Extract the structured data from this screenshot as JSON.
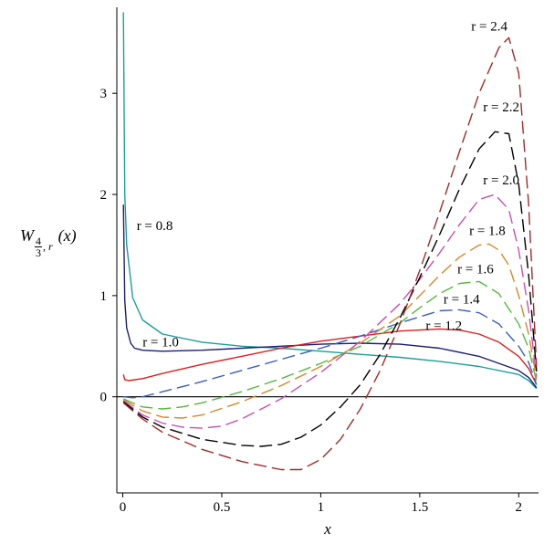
{
  "chart_data": {
    "type": "line",
    "title": "",
    "xlabel": "x",
    "ylabel_parts": {
      "main": "W",
      "frac_num": "4",
      "frac_den": "3",
      "sub_sep": ", ",
      "sub_var": "r",
      "arg": "(x)"
    },
    "xlim": [
      -0.03,
      2.1
    ],
    "ylim": [
      -0.95,
      3.85
    ],
    "x_ticks": [
      0,
      0.5,
      1,
      1.5,
      2
    ],
    "x_tick_labels": [
      "0",
      "0.5",
      "1",
      "1.5",
      "2"
    ],
    "y_ticks": [
      0,
      1,
      2,
      3
    ],
    "y_tick_labels": [
      "0",
      "1",
      "2",
      "3"
    ],
    "grid": false,
    "legend": "none",
    "series": [
      {
        "name": "r = 0.8",
        "color": "#19a09a",
        "dash": "solid",
        "x": [
          0.003,
          0.01,
          0.02,
          0.05,
          0.1,
          0.2,
          0.4,
          0.6,
          0.8,
          1.0,
          1.2,
          1.4,
          1.6,
          1.8,
          2.0,
          2.05,
          2.09
        ],
        "y": [
          3.8,
          2.0,
          1.5,
          0.98,
          0.76,
          0.62,
          0.54,
          0.5,
          0.48,
          0.45,
          0.42,
          0.39,
          0.35,
          0.3,
          0.22,
          0.16,
          0.08
        ]
      },
      {
        "name": "r = 1.0",
        "color": "#1c1c7a",
        "dash": "solid",
        "x": [
          0.003,
          0.01,
          0.02,
          0.04,
          0.06,
          0.1,
          0.2,
          0.4,
          0.6,
          0.8,
          1.0,
          1.2,
          1.4,
          1.6,
          1.8,
          2.0,
          2.05,
          2.09
        ],
        "y": [
          1.9,
          0.95,
          0.68,
          0.53,
          0.48,
          0.46,
          0.45,
          0.46,
          0.48,
          0.5,
          0.52,
          0.53,
          0.52,
          0.48,
          0.4,
          0.26,
          0.19,
          0.09
        ]
      },
      {
        "name": "r = 1.2",
        "color": "#e21c1c",
        "dash": "solid",
        "x": [
          0.003,
          0.01,
          0.03,
          0.1,
          0.2,
          0.4,
          0.6,
          0.8,
          1.0,
          1.2,
          1.4,
          1.6,
          1.7,
          1.8,
          1.9,
          2.0,
          2.05,
          2.09
        ],
        "y": [
          0.22,
          0.17,
          0.16,
          0.18,
          0.23,
          0.32,
          0.4,
          0.48,
          0.55,
          0.6,
          0.65,
          0.67,
          0.66,
          0.62,
          0.54,
          0.4,
          0.28,
          0.12
        ]
      },
      {
        "name": "r = 1.4",
        "color": "#3a5fbf",
        "dash": "dashed",
        "x": [
          0.003,
          0.05,
          0.1,
          0.2,
          0.4,
          0.6,
          0.8,
          1.0,
          1.2,
          1.4,
          1.5,
          1.6,
          1.7,
          1.8,
          1.9,
          2.0,
          2.05,
          2.09
        ],
        "y": [
          0.0,
          -0.01,
          0.0,
          0.05,
          0.15,
          0.26,
          0.37,
          0.48,
          0.6,
          0.73,
          0.79,
          0.85,
          0.86,
          0.83,
          0.72,
          0.5,
          0.34,
          0.12
        ]
      },
      {
        "name": "r = 1.6",
        "color": "#55b83a",
        "dash": "dashed",
        "x": [
          0.003,
          0.05,
          0.1,
          0.2,
          0.3,
          0.4,
          0.6,
          0.8,
          1.0,
          1.2,
          1.4,
          1.5,
          1.6,
          1.7,
          1.8,
          1.9,
          2.0,
          2.05,
          2.09
        ],
        "y": [
          -0.02,
          -0.06,
          -0.1,
          -0.12,
          -0.1,
          -0.06,
          0.05,
          0.18,
          0.33,
          0.5,
          0.73,
          0.88,
          1.02,
          1.12,
          1.14,
          1.02,
          0.72,
          0.48,
          0.15
        ]
      },
      {
        "name": "r = 1.8",
        "color": "#d8882a",
        "dash": "dashed",
        "x": [
          0.003,
          0.1,
          0.2,
          0.3,
          0.4,
          0.6,
          0.8,
          1.0,
          1.2,
          1.4,
          1.5,
          1.6,
          1.7,
          1.8,
          1.85,
          1.9,
          1.95,
          2.0,
          2.05,
          2.09
        ],
        "y": [
          -0.03,
          -0.14,
          -0.2,
          -0.21,
          -0.18,
          -0.05,
          0.11,
          0.3,
          0.53,
          0.8,
          1.0,
          1.2,
          1.38,
          1.5,
          1.51,
          1.45,
          1.3,
          1.0,
          0.62,
          0.18
        ]
      },
      {
        "name": "r = 2.0",
        "color": "#c74fb6",
        "dash": "dashed",
        "x": [
          0.003,
          0.1,
          0.2,
          0.3,
          0.4,
          0.5,
          0.6,
          0.8,
          1.0,
          1.2,
          1.4,
          1.5,
          1.6,
          1.7,
          1.8,
          1.88,
          1.95,
          2.0,
          2.05,
          2.09
        ],
        "y": [
          -0.04,
          -0.18,
          -0.26,
          -0.3,
          -0.31,
          -0.29,
          -0.22,
          -0.02,
          0.24,
          0.55,
          0.92,
          1.16,
          1.42,
          1.7,
          1.95,
          2.0,
          1.85,
          1.45,
          0.85,
          0.2
        ]
      },
      {
        "name": "r = 2.2",
        "color": "#000000",
        "dash": "dashed",
        "x": [
          0.003,
          0.1,
          0.2,
          0.4,
          0.6,
          0.7,
          0.8,
          0.9,
          1.0,
          1.1,
          1.2,
          1.3,
          1.4,
          1.5,
          1.6,
          1.7,
          1.8,
          1.88,
          1.95,
          2.0,
          2.05,
          2.09
        ],
        "y": [
          -0.05,
          -0.2,
          -0.3,
          -0.42,
          -0.48,
          -0.49,
          -0.47,
          -0.4,
          -0.28,
          -0.1,
          0.12,
          0.42,
          0.78,
          1.18,
          1.6,
          2.05,
          2.45,
          2.62,
          2.6,
          2.1,
          1.2,
          0.25
        ]
      },
      {
        "name": "r = 2.4",
        "color": "#a32a2a",
        "dash": "dashed",
        "x": [
          0.003,
          0.1,
          0.2,
          0.4,
          0.6,
          0.8,
          0.9,
          1.0,
          1.1,
          1.2,
          1.3,
          1.4,
          1.5,
          1.6,
          1.7,
          1.8,
          1.9,
          1.95,
          2.0,
          2.05,
          2.09
        ],
        "y": [
          -0.06,
          -0.22,
          -0.35,
          -0.52,
          -0.64,
          -0.72,
          -0.72,
          -0.62,
          -0.42,
          -0.12,
          0.26,
          0.72,
          1.25,
          1.82,
          2.42,
          3.0,
          3.45,
          3.55,
          3.2,
          1.9,
          0.3
        ]
      }
    ],
    "annotations": [
      {
        "text": "r = 2.4",
        "x": 1.76,
        "y": 3.62
      },
      {
        "text": "r = 2.2",
        "x": 1.82,
        "y": 2.82
      },
      {
        "text": "r = 2.0",
        "x": 1.82,
        "y": 2.1
      },
      {
        "text": "r = 1.8",
        "x": 1.75,
        "y": 1.6
      },
      {
        "text": "r = 1.6",
        "x": 1.69,
        "y": 1.22
      },
      {
        "text": "r = 1.4",
        "x": 1.62,
        "y": 0.92
      },
      {
        "text": "r = 1.2",
        "x": 1.53,
        "y": 0.66
      },
      {
        "text": "r = 1.0",
        "x": 0.1,
        "y": 0.5
      },
      {
        "text": "r = 0.8",
        "x": 0.07,
        "y": 1.65
      }
    ]
  }
}
